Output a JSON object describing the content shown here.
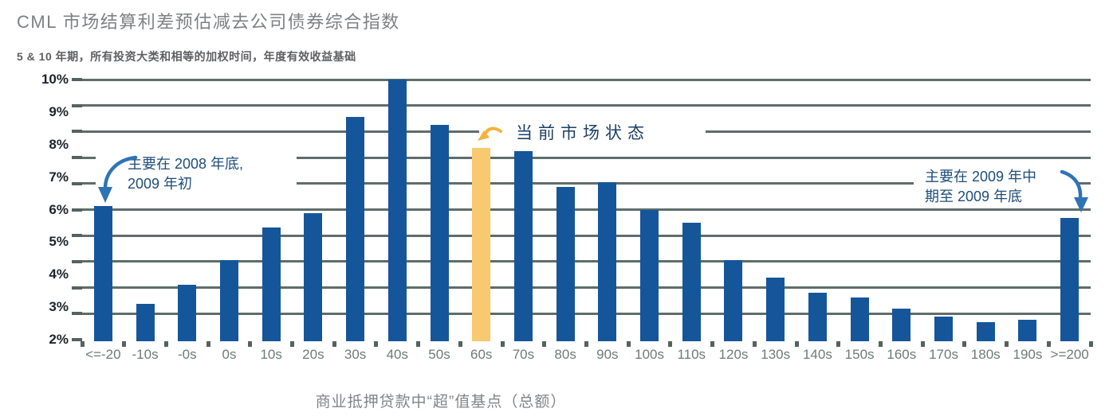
{
  "title": "CML 市场结算利差预估减去公司债券综合指数",
  "subtitle": "5 & 10 年期，所有投资大类和相等的加权时间，年度有效收益基础",
  "chart_data": {
    "type": "bar",
    "title": "CML 市场结算利差预估减去公司债券综合指数",
    "subtitle": "5 & 10 年期，所有投资大类和相等的加权时间，年度有效收益基础",
    "categories": [
      "<=-20",
      "-10s",
      "-0s",
      "0s",
      "10s",
      "20s",
      "30s",
      "40s",
      "50s",
      "60s",
      "70s",
      "80s",
      "90s",
      "100s",
      "110s",
      "120s",
      "130s",
      "140s",
      "150s",
      "160s",
      "170s",
      "180s",
      "190s",
      ">=200"
    ],
    "values": [
      6.1,
      3.1,
      3.7,
      4.45,
      5.45,
      5.9,
      8.85,
      10.0,
      8.6,
      7.9,
      7.8,
      6.7,
      6.85,
      6.0,
      5.6,
      4.45,
      3.9,
      3.45,
      3.3,
      2.95,
      2.7,
      2.55,
      2.6,
      5.75
    ],
    "highlight_index": 9,
    "highlight_label": "60s",
    "xlabel": "商业抵押贷款中“超”值基点（总额）",
    "ylabel": "",
    "ylim": [
      2,
      10
    ],
    "y_tick_labels": [
      "10%",
      "9%",
      "8%",
      "7%",
      "6%",
      "5%",
      "4%",
      "3%",
      "2%"
    ],
    "y_tick_values": [
      10,
      9,
      8,
      7,
      6,
      5,
      4,
      3,
      2
    ],
    "gridline_values": [
      2.8,
      3.6,
      4.4,
      5.2,
      6.0,
      6.8,
      7.6,
      8.4,
      9.2,
      10.0
    ],
    "grid": true,
    "legend": false
  },
  "annotations": {
    "left": {
      "line1": "主要在 2008 年底,",
      "line2": "2009 年初"
    },
    "center": {
      "text": "当前市场状态"
    },
    "right": {
      "line1": "主要在 2009 年中",
      "line2": "期至 2009 年底"
    }
  },
  "colors": {
    "bar_blue": "#15569b",
    "bar_highlight": "#f8c96e",
    "grid_gray": "#5e6d6a",
    "axis_gray": "#55625f",
    "x_label_gray": "#6e7b77",
    "y_label_dark": "#20242e",
    "annotation_navy": "#1f4e79",
    "arrow_blue": "#2e74b5",
    "arrow_orange": "#f3b33c",
    "title_gray": "#7e8184",
    "subtitle_gray": "#5f6063",
    "axis_title_gray": "#828487"
  }
}
